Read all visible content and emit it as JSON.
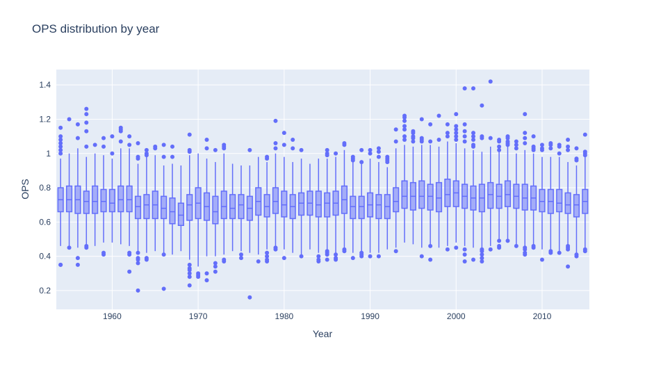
{
  "chart_data": {
    "type": "box",
    "title": "OPS distribution by year",
    "xlabel": "Year",
    "ylabel": "OPS",
    "xlim": [
      1953.5,
      2015.5
    ],
    "ylim": [
      0.09,
      1.49
    ],
    "xticks": [
      1960,
      1970,
      1980,
      1990,
      2000,
      2010
    ],
    "xtick_labels": [
      "1960",
      "1970",
      "1980",
      "1990",
      "2000",
      "2010"
    ],
    "yticks": [
      0.2,
      0.4,
      0.6,
      0.8,
      1.0,
      1.2,
      1.4
    ],
    "ytick_labels": [
      "0.2",
      "0.4",
      "0.6",
      "0.8",
      "1",
      "1.2",
      "1.4"
    ],
    "grid": true,
    "colors": {
      "box": "#636efa",
      "plot_bg": "#e5ecf6",
      "grid": "#ffffff",
      "text": "#2a3f5f"
    },
    "boxes": [
      {
        "year": 1954,
        "lower": 0.46,
        "q1": 0.66,
        "median": 0.73,
        "q3": 0.8,
        "upper": 0.97,
        "outliers": [
          1.0,
          1.02,
          1.04,
          1.06,
          1.08,
          1.1,
          1.15,
          0.35,
          0.35
        ]
      },
      {
        "year": 1955,
        "lower": 0.46,
        "q1": 0.66,
        "median": 0.73,
        "q3": 0.81,
        "upper": 1.0,
        "outliers": [
          1.2,
          0.45
        ]
      },
      {
        "year": 1956,
        "lower": 0.45,
        "q1": 0.65,
        "median": 0.73,
        "q3": 0.81,
        "upper": 1.03,
        "outliers": [
          1.17,
          1.09,
          0.39,
          0.35
        ]
      },
      {
        "year": 1957,
        "lower": 0.47,
        "q1": 0.65,
        "median": 0.72,
        "q3": 0.78,
        "upper": 0.98,
        "outliers": [
          1.26,
          1.23,
          1.18,
          1.13,
          1.04,
          0.46,
          0.45
        ]
      },
      {
        "year": 1958,
        "lower": 0.46,
        "q1": 0.65,
        "median": 0.72,
        "q3": 0.81,
        "upper": 1.0,
        "outliers": [
          1.05
        ]
      },
      {
        "year": 1959,
        "lower": 0.48,
        "q1": 0.66,
        "median": 0.72,
        "q3": 0.79,
        "upper": 0.99,
        "outliers": [
          1.09,
          1.04,
          0.42,
          0.41
        ]
      },
      {
        "year": 1960,
        "lower": 0.48,
        "q1": 0.66,
        "median": 0.71,
        "q3": 0.79,
        "upper": 0.97,
        "outliers": [
          1.1,
          1.0
        ]
      },
      {
        "year": 1961,
        "lower": 0.47,
        "q1": 0.66,
        "median": 0.73,
        "q3": 0.81,
        "upper": 1.03,
        "outliers": [
          1.15,
          1.14,
          1.13,
          1.07
        ]
      },
      {
        "year": 1962,
        "lower": 0.46,
        "q1": 0.66,
        "median": 0.73,
        "q3": 0.81,
        "upper": 1.03,
        "outliers": [
          1.1,
          1.05,
          0.42,
          0.41,
          0.31
        ]
      },
      {
        "year": 1963,
        "lower": 0.43,
        "q1": 0.62,
        "median": 0.69,
        "q3": 0.75,
        "upper": 0.94,
        "outliers": [
          1.06,
          0.98,
          0.97,
          0.42,
          0.39,
          0.38,
          0.36,
          0.2
        ]
      },
      {
        "year": 1964,
        "lower": 0.42,
        "q1": 0.62,
        "median": 0.7,
        "q3": 0.76,
        "upper": 0.98,
        "outliers": [
          1.02,
          1.0,
          0.99,
          0.39,
          0.38
        ]
      },
      {
        "year": 1965,
        "lower": 0.43,
        "q1": 0.62,
        "median": 0.7,
        "q3": 0.78,
        "upper": 0.99,
        "outliers": [
          1.04,
          1.03
        ]
      },
      {
        "year": 1966,
        "lower": 0.42,
        "q1": 0.62,
        "median": 0.68,
        "q3": 0.75,
        "upper": 0.93,
        "outliers": [
          1.05,
          0.98,
          0.41,
          0.21
        ]
      },
      {
        "year": 1967,
        "lower": 0.41,
        "q1": 0.59,
        "median": 0.66,
        "q3": 0.74,
        "upper": 0.94,
        "outliers": [
          1.04,
          0.98
        ]
      },
      {
        "year": 1968,
        "lower": 0.43,
        "q1": 0.58,
        "median": 0.64,
        "q3": 0.71,
        "upper": 0.93,
        "outliers": []
      },
      {
        "year": 1969,
        "lower": 0.38,
        "q1": 0.61,
        "median": 0.7,
        "q3": 0.76,
        "upper": 0.99,
        "outliers": [
          1.11,
          1.02,
          1.01,
          0.35,
          0.33,
          0.32,
          0.3,
          0.28,
          0.23
        ]
      },
      {
        "year": 1970,
        "lower": 0.34,
        "q1": 0.62,
        "median": 0.71,
        "q3": 0.8,
        "upper": 1.0,
        "outliers": [
          0.3,
          0.29,
          0.28
        ]
      },
      {
        "year": 1971,
        "lower": 0.4,
        "q1": 0.61,
        "median": 0.69,
        "q3": 0.77,
        "upper": 0.97,
        "outliers": [
          1.08,
          1.03,
          0.3,
          0.26
        ]
      },
      {
        "year": 1972,
        "lower": 0.4,
        "q1": 0.59,
        "median": 0.66,
        "q3": 0.75,
        "upper": 0.95,
        "outliers": [
          1.02,
          0.36,
          0.34,
          0.31
        ]
      },
      {
        "year": 1973,
        "lower": 0.41,
        "q1": 0.62,
        "median": 0.69,
        "q3": 0.78,
        "upper": 1.0,
        "outliers": [
          1.05,
          1.04,
          1.03,
          0.38,
          0.37
        ]
      },
      {
        "year": 1974,
        "lower": 0.43,
        "q1": 0.62,
        "median": 0.68,
        "q3": 0.76,
        "upper": 0.94,
        "outliers": []
      },
      {
        "year": 1975,
        "lower": 0.43,
        "q1": 0.62,
        "median": 0.7,
        "q3": 0.76,
        "upper": 0.93,
        "outliers": [
          0.41,
          0.39
        ]
      },
      {
        "year": 1976,
        "lower": 0.42,
        "q1": 0.61,
        "median": 0.68,
        "q3": 0.75,
        "upper": 0.93,
        "outliers": [
          1.02,
          0.16
        ]
      },
      {
        "year": 1977,
        "lower": 0.41,
        "q1": 0.64,
        "median": 0.72,
        "q3": 0.8,
        "upper": 0.98,
        "outliers": [
          0.37
        ]
      },
      {
        "year": 1978,
        "lower": 0.44,
        "q1": 0.63,
        "median": 0.69,
        "q3": 0.76,
        "upper": 0.95,
        "outliers": [
          0.98,
          0.97,
          0.42,
          0.4,
          0.38,
          0.37
        ]
      },
      {
        "year": 1979,
        "lower": 0.46,
        "q1": 0.65,
        "median": 0.72,
        "q3": 0.8,
        "upper": 1.0,
        "outliers": [
          1.19,
          1.06,
          1.03,
          0.45,
          0.44
        ]
      },
      {
        "year": 1980,
        "lower": 0.44,
        "q1": 0.63,
        "median": 0.7,
        "q3": 0.78,
        "upper": 0.98,
        "outliers": [
          1.12,
          1.05,
          0.39
        ]
      },
      {
        "year": 1981,
        "lower": 0.42,
        "q1": 0.62,
        "median": 0.69,
        "q3": 0.76,
        "upper": 0.95,
        "outliers": [
          1.08,
          1.03
        ]
      },
      {
        "year": 1982,
        "lower": 0.41,
        "q1": 0.64,
        "median": 0.71,
        "q3": 0.77,
        "upper": 0.97,
        "outliers": [
          1.02,
          0.4
        ]
      },
      {
        "year": 1983,
        "lower": 0.44,
        "q1": 0.64,
        "median": 0.71,
        "q3": 0.78,
        "upper": 0.94,
        "outliers": []
      },
      {
        "year": 1984,
        "lower": 0.42,
        "q1": 0.63,
        "median": 0.7,
        "q3": 0.78,
        "upper": 0.97,
        "outliers": [
          0.4,
          0.38,
          0.37
        ]
      },
      {
        "year": 1985,
        "lower": 0.43,
        "q1": 0.63,
        "median": 0.71,
        "q3": 0.77,
        "upper": 0.97,
        "outliers": [
          1.02,
          1.0,
          0.99,
          0.43,
          0.42,
          0.41,
          0.38
        ]
      },
      {
        "year": 1986,
        "lower": 0.42,
        "q1": 0.64,
        "median": 0.71,
        "q3": 0.78,
        "upper": 0.98,
        "outliers": [
          1.0,
          0.41,
          0.39,
          0.38
        ]
      },
      {
        "year": 1987,
        "lower": 0.44,
        "q1": 0.65,
        "median": 0.73,
        "q3": 0.81,
        "upper": 1.02,
        "outliers": [
          1.06,
          1.05,
          0.44,
          0.43
        ]
      },
      {
        "year": 1988,
        "lower": 0.42,
        "q1": 0.62,
        "median": 0.69,
        "q3": 0.75,
        "upper": 0.95,
        "outliers": [
          0.98,
          0.97,
          0.96,
          0.39
        ]
      },
      {
        "year": 1989,
        "lower": 0.43,
        "q1": 0.62,
        "median": 0.69,
        "q3": 0.75,
        "upper": 0.94,
        "outliers": [
          1.02,
          0.95,
          0.42,
          0.41,
          0.4
        ]
      },
      {
        "year": 1990,
        "lower": 0.42,
        "q1": 0.63,
        "median": 0.7,
        "q3": 0.77,
        "upper": 0.97,
        "outliers": [
          1.02,
          1.0,
          0.4
        ]
      },
      {
        "year": 1991,
        "lower": 0.42,
        "q1": 0.62,
        "median": 0.7,
        "q3": 0.76,
        "upper": 0.95,
        "outliers": [
          1.03,
          1.01,
          0.98,
          0.4
        ]
      },
      {
        "year": 1992,
        "lower": 0.44,
        "q1": 0.62,
        "median": 0.69,
        "q3": 0.76,
        "upper": 0.92,
        "outliers": [
          0.98,
          0.97,
          0.96,
          0.95
        ]
      },
      {
        "year": 1993,
        "lower": 0.45,
        "q1": 0.66,
        "median": 0.72,
        "q3": 0.8,
        "upper": 1.03,
        "outliers": [
          1.14,
          1.07,
          0.43
        ]
      },
      {
        "year": 1994,
        "lower": 0.48,
        "q1": 0.68,
        "median": 0.75,
        "q3": 0.84,
        "upper": 1.05,
        "outliers": [
          1.22,
          1.21,
          1.19,
          1.16,
          1.14,
          1.1,
          1.08
        ]
      },
      {
        "year": 1995,
        "lower": 0.47,
        "q1": 0.67,
        "median": 0.75,
        "q3": 0.83,
        "upper": 1.04,
        "outliers": [
          1.13,
          1.12,
          1.1,
          1.09,
          1.07
        ]
      },
      {
        "year": 1996,
        "lower": 0.45,
        "q1": 0.68,
        "median": 0.75,
        "q3": 0.84,
        "upper": 1.05,
        "outliers": [
          1.2,
          1.09,
          1.08,
          1.07,
          0.4
        ]
      },
      {
        "year": 1997,
        "lower": 0.47,
        "q1": 0.67,
        "median": 0.75,
        "q3": 0.82,
        "upper": 1.05,
        "outliers": [
          1.17,
          1.07,
          0.46,
          0.38
        ]
      },
      {
        "year": 1998,
        "lower": 0.45,
        "q1": 0.66,
        "median": 0.74,
        "q3": 0.83,
        "upper": 1.04,
        "outliers": [
          1.22,
          1.08
        ]
      },
      {
        "year": 1999,
        "lower": 0.46,
        "q1": 0.69,
        "median": 0.76,
        "q3": 0.85,
        "upper": 1.07,
        "outliers": [
          1.17,
          1.12,
          1.1,
          0.44
        ]
      },
      {
        "year": 2000,
        "lower": 0.48,
        "q1": 0.69,
        "median": 0.77,
        "q3": 0.84,
        "upper": 1.06,
        "outliers": [
          1.23,
          1.16,
          1.14,
          1.12,
          1.1,
          1.08,
          0.45
        ]
      },
      {
        "year": 2001,
        "lower": 0.46,
        "q1": 0.68,
        "median": 0.75,
        "q3": 0.82,
        "upper": 1.03,
        "outliers": [
          1.38,
          1.17,
          1.13,
          1.1,
          1.07,
          0.44,
          0.41,
          0.37
        ]
      },
      {
        "year": 2002,
        "lower": 0.45,
        "q1": 0.67,
        "median": 0.74,
        "q3": 0.81,
        "upper": 1.02,
        "outliers": [
          1.38,
          1.12,
          1.1,
          1.08,
          1.05,
          1.04,
          0.38
        ]
      },
      {
        "year": 2003,
        "lower": 0.45,
        "q1": 0.66,
        "median": 0.74,
        "q3": 0.82,
        "upper": 1.01,
        "outliers": [
          1.28,
          1.1,
          1.09,
          0.44,
          0.43,
          0.41,
          0.39,
          0.37
        ]
      },
      {
        "year": 2004,
        "lower": 0.46,
        "q1": 0.68,
        "median": 0.76,
        "q3": 0.83,
        "upper": 1.04,
        "outliers": [
          1.42,
          1.09,
          0.44
        ]
      },
      {
        "year": 2005,
        "lower": 0.5,
        "q1": 0.68,
        "median": 0.75,
        "q3": 0.82,
        "upper": 1.04,
        "outliers": [
          1.08,
          1.07,
          1.04,
          1.02,
          0.49,
          0.46,
          0.45
        ]
      },
      {
        "year": 2006,
        "lower": 0.5,
        "q1": 0.69,
        "median": 0.76,
        "q3": 0.84,
        "upper": 1.04,
        "outliers": [
          1.1,
          1.09,
          1.07,
          1.06,
          1.05,
          0.49
        ]
      },
      {
        "year": 2007,
        "lower": 0.47,
        "q1": 0.68,
        "median": 0.75,
        "q3": 0.82,
        "upper": 1.0,
        "outliers": [
          1.07,
          1.05,
          1.03,
          0.46
        ]
      },
      {
        "year": 2008,
        "lower": 0.46,
        "q1": 0.67,
        "median": 0.74,
        "q3": 0.82,
        "upper": 1.02,
        "outliers": [
          1.23,
          1.12,
          1.09,
          1.06,
          0.45,
          0.44,
          0.42,
          0.41
        ]
      },
      {
        "year": 2009,
        "lower": 0.46,
        "q1": 0.67,
        "median": 0.74,
        "q3": 0.81,
        "upper": 1.0,
        "outliers": [
          1.1,
          1.04,
          1.03,
          1.02,
          0.46,
          0.45
        ]
      },
      {
        "year": 2010,
        "lower": 0.44,
        "q1": 0.66,
        "median": 0.72,
        "q3": 0.79,
        "upper": 0.98,
        "outliers": [
          1.05,
          1.03,
          1.02,
          0.38
        ]
      },
      {
        "year": 2011,
        "lower": 0.44,
        "q1": 0.65,
        "median": 0.72,
        "q3": 0.79,
        "upper": 0.98,
        "outliers": [
          1.06,
          1.05,
          1.03,
          0.43,
          0.42
        ]
      },
      {
        "year": 2012,
        "lower": 0.43,
        "q1": 0.66,
        "median": 0.71,
        "q3": 0.79,
        "upper": 0.98,
        "outliers": [
          1.05,
          1.04,
          1.0,
          0.42
        ]
      },
      {
        "year": 2013,
        "lower": 0.47,
        "q1": 0.65,
        "median": 0.7,
        "q3": 0.77,
        "upper": 0.95,
        "outliers": [
          1.08,
          1.04,
          1.02,
          0.46,
          0.45,
          0.44,
          0.34
        ]
      },
      {
        "year": 2014,
        "lower": 0.42,
        "q1": 0.63,
        "median": 0.7,
        "q3": 0.76,
        "upper": 0.93,
        "outliers": [
          1.03,
          0.97,
          0.96,
          0.41,
          0.4
        ]
      },
      {
        "year": 2015,
        "lower": 0.45,
        "q1": 0.65,
        "median": 0.72,
        "q3": 0.79,
        "upper": 0.99,
        "outliers": [
          1.11,
          1.01,
          1.0,
          0.99,
          0.44,
          0.43
        ]
      }
    ]
  }
}
